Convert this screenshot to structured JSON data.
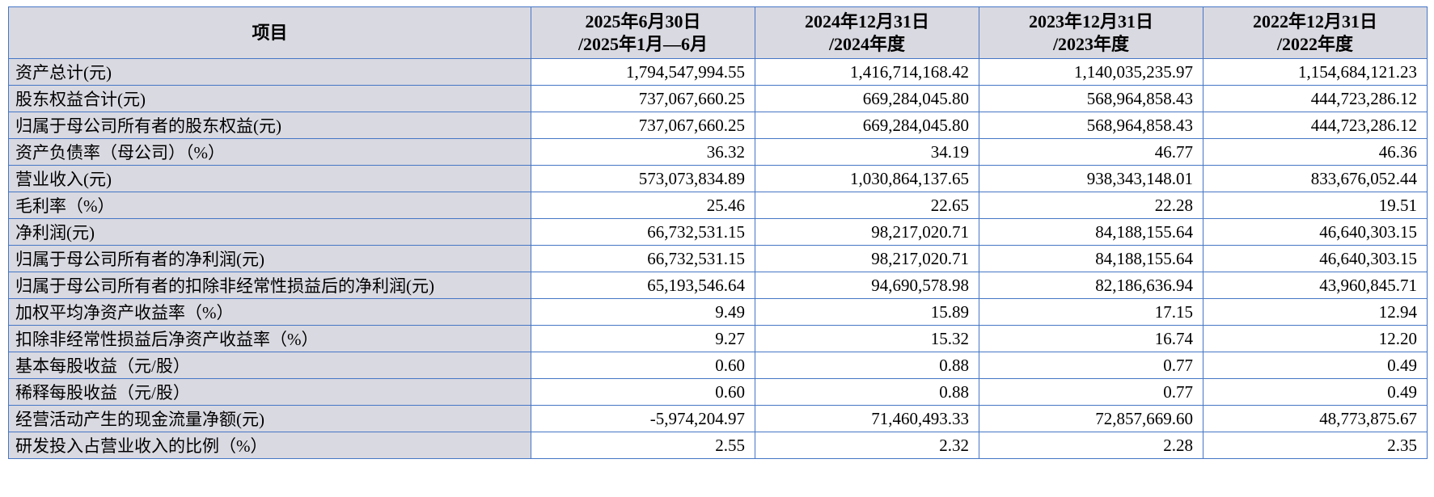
{
  "colors": {
    "border": "#4576C5",
    "header_bg": "#D9D9E1"
  },
  "table": {
    "header": {
      "item_label": "项目",
      "columns": [
        {
          "line1": "2025年6月30日",
          "line2": "/2025年1月—6月"
        },
        {
          "line1": "2024年12月31日",
          "line2": "/2024年度"
        },
        {
          "line1": "2023年12月31日",
          "line2": "/2023年度"
        },
        {
          "line1": "2022年12月31日",
          "line2": "/2022年度"
        }
      ]
    },
    "rows": [
      {
        "label": "资产总计(元)",
        "values": [
          "1,794,547,994.55",
          "1,416,714,168.42",
          "1,140,035,235.97",
          "1,154,684,121.23"
        ]
      },
      {
        "label": "股东权益合计(元)",
        "values": [
          "737,067,660.25",
          "669,284,045.80",
          "568,964,858.43",
          "444,723,286.12"
        ]
      },
      {
        "label": "归属于母公司所有者的股东权益(元)",
        "values": [
          "737,067,660.25",
          "669,284,045.80",
          "568,964,858.43",
          "444,723,286.12"
        ]
      },
      {
        "label": "资产负债率（母公司）（%）",
        "values": [
          "36.32",
          "34.19",
          "46.77",
          "46.36"
        ]
      },
      {
        "label": "营业收入(元)",
        "values": [
          "573,073,834.89",
          "1,030,864,137.65",
          "938,343,148.01",
          "833,676,052.44"
        ]
      },
      {
        "label": "毛利率（%）",
        "values": [
          "25.46",
          "22.65",
          "22.28",
          "19.51"
        ]
      },
      {
        "label": "净利润(元)",
        "values": [
          "66,732,531.15",
          "98,217,020.71",
          "84,188,155.64",
          "46,640,303.15"
        ]
      },
      {
        "label": "归属于母公司所有者的净利润(元)",
        "values": [
          "66,732,531.15",
          "98,217,020.71",
          "84,188,155.64",
          "46,640,303.15"
        ]
      },
      {
        "label": "归属于母公司所有者的扣除非经常性损益后的净利润(元)",
        "values": [
          "65,193,546.64",
          "94,690,578.98",
          "82,186,636.94",
          "43,960,845.71"
        ]
      },
      {
        "label": "加权平均净资产收益率（%）",
        "values": [
          "9.49",
          "15.89",
          "17.15",
          "12.94"
        ]
      },
      {
        "label": "扣除非经常性损益后净资产收益率（%）",
        "values": [
          "9.27",
          "15.32",
          "16.74",
          "12.20"
        ]
      },
      {
        "label": "基本每股收益（元/股）",
        "values": [
          "0.60",
          "0.88",
          "0.77",
          "0.49"
        ]
      },
      {
        "label": "稀释每股收益（元/股）",
        "values": [
          "0.60",
          "0.88",
          "0.77",
          "0.49"
        ]
      },
      {
        "label": "经营活动产生的现金流量净额(元)",
        "values": [
          "-5,974,204.97",
          "71,460,493.33",
          "72,857,669.60",
          "48,773,875.67"
        ]
      },
      {
        "label": "研发投入占营业收入的比例（%）",
        "values": [
          "2.55",
          "2.32",
          "2.28",
          "2.35"
        ]
      }
    ]
  }
}
